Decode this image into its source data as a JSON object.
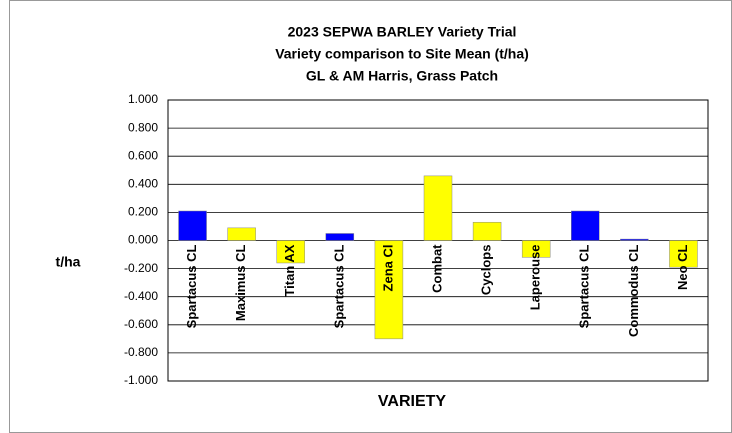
{
  "chart_data": {
    "type": "bar",
    "title": [
      "2023 SEPWA BARLEY Variety Trial",
      "Variety comparison to Site Mean (t/ha)",
      "GL & AM Harris, Grass Patch"
    ],
    "y_label": "t/ha",
    "x_label": "VARIETY",
    "categories": [
      "Spartacus CL",
      "Maximus CL",
      "Titan AX",
      "Spartacus CL",
      "Zena Cl",
      "Combat",
      "Cyclops",
      "Laperouse",
      "Spartacus CL",
      "Commodus CL",
      "Neo CL"
    ],
    "values": [
      0.21,
      0.09,
      -0.16,
      0.05,
      -0.7,
      0.46,
      0.13,
      -0.12,
      0.21,
      0.01,
      -0.19
    ],
    "colors": [
      "#0000ff",
      "#ffff00",
      "#ffff00",
      "#0000ff",
      "#ffff00",
      "#ffff00",
      "#ffff00",
      "#ffff00",
      "#0000ff",
      "#0000ff",
      "#ffff00"
    ],
    "ylim": [
      -1,
      1
    ],
    "yticks": [
      {
        "value": -1,
        "label": "-1.000"
      },
      {
        "value": -0.8,
        "label": "-0.800"
      },
      {
        "value": -0.6,
        "label": "-0.600"
      },
      {
        "value": -0.4,
        "label": "-0.400"
      },
      {
        "value": -0.2,
        "label": "-0.200"
      },
      {
        "value": 0,
        "label": "0.000"
      },
      {
        "value": 0.2,
        "label": "0.200"
      },
      {
        "value": 0.4,
        "label": "0.400"
      },
      {
        "value": 0.6,
        "label": "0.600"
      },
      {
        "value": 0.8,
        "label": "0.800"
      },
      {
        "value": 1,
        "label": "1.000"
      }
    ],
    "grid": true
  }
}
